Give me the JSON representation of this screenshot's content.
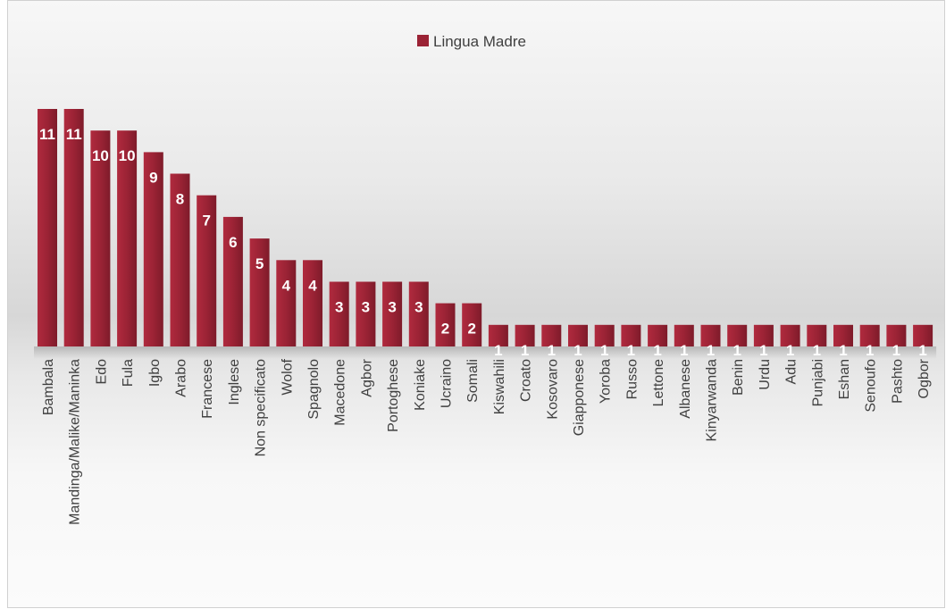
{
  "chart_data": {
    "type": "bar",
    "categories": [
      "Bambala",
      "Mandinga/Malike/Maninka",
      "Edo",
      "Fula",
      "Igbo",
      "Arabo",
      "Francese",
      "Inglese",
      "Non specificato",
      "Wolof",
      "Spagnolo",
      "Macedone",
      "Agbor",
      "Portoghese",
      "Koniake",
      "Ucraino",
      "Somali",
      "Kiswahili",
      "Croato",
      "Kosovaro",
      "Giapponese",
      "Yoroba",
      "Russo",
      "Lettone",
      "Albanese",
      "Kinyarwanda",
      "Benin",
      "Urdu",
      "Adu",
      "Punjabi",
      "Eshan",
      "Senoufo",
      "Pashto",
      "Ogbor"
    ],
    "series": [
      {
        "name": "Lingua Madre",
        "values": [
          11,
          11,
          10,
          10,
          9,
          8,
          7,
          6,
          5,
          4,
          4,
          3,
          3,
          3,
          3,
          2,
          2,
          1,
          1,
          1,
          1,
          1,
          1,
          1,
          1,
          1,
          1,
          1,
          1,
          1,
          1,
          1,
          1,
          1
        ]
      }
    ],
    "ylim": [
      0,
      11
    ],
    "legend": "top-center",
    "grid": false,
    "data_labels": true,
    "colors": {
      "bar": "#9b2335",
      "bar_light": "#b02a3e",
      "bar_dark": "#7e1b2a"
    }
  }
}
